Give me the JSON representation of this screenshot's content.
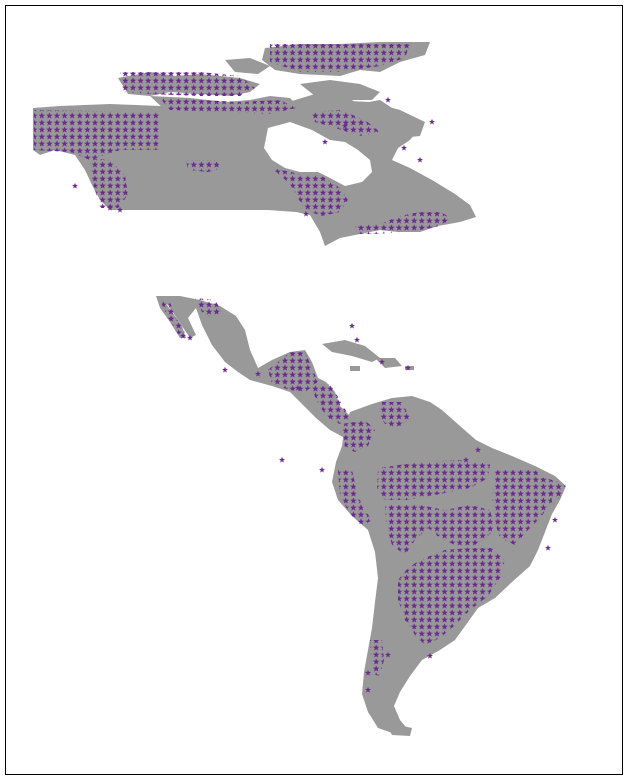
{
  "map": {
    "land_color": "#999999",
    "water_color": "#ffffff",
    "marker_color": "#6b2a8f",
    "marker_symbol": "star",
    "frame_color": "#000000"
  }
}
